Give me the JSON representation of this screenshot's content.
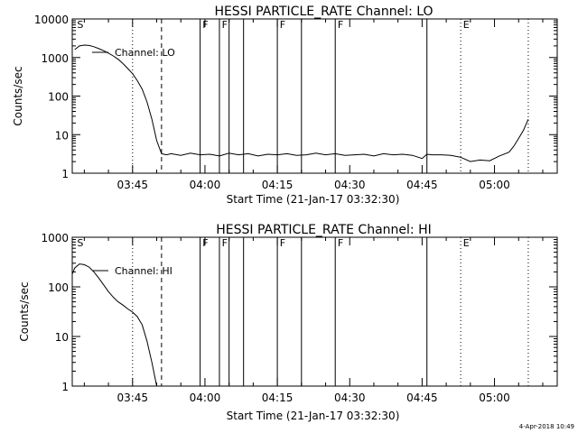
{
  "footer": {
    "timestamp": "4-Apr-2018 10:49"
  },
  "chart_data": [
    {
      "type": "line",
      "title": "HESSI PARTICLE_RATE Channel: LO",
      "xlabel": "Start Time (21-Jan-17 03:32:30)",
      "ylabel": "Counts/sec",
      "yscale": "log",
      "xlim": [
        "03:32:30",
        "05:13:00"
      ],
      "ylim": [
        1,
        10000
      ],
      "x_ticks": [
        "03:45",
        "04:00",
        "04:15",
        "04:30",
        "04:45",
        "05:00"
      ],
      "y_ticks": [
        "1",
        "10",
        "100",
        "1000",
        "10000"
      ],
      "legend": "Channel: LO",
      "flag_labels": [
        "S",
        "F",
        "F",
        "F",
        "F",
        "E"
      ],
      "markers": [
        {
          "time": "03:45",
          "style": "dotted"
        },
        {
          "time": "03:51",
          "style": "dashed"
        },
        {
          "time": "03:59",
          "style": "solid"
        },
        {
          "time": "04:03",
          "style": "solid"
        },
        {
          "time": "04:05",
          "style": "solid"
        },
        {
          "time": "04:08",
          "style": "solid"
        },
        {
          "time": "04:15",
          "style": "solid"
        },
        {
          "time": "04:20",
          "style": "solid"
        },
        {
          "time": "04:27",
          "style": "solid"
        },
        {
          "time": "04:46",
          "style": "solid"
        },
        {
          "time": "04:53",
          "style": "dotted"
        },
        {
          "time": "05:07",
          "style": "dotted"
        }
      ],
      "series": [
        {
          "x": [
            "03:33",
            "03:34",
            "03:35",
            "03:36",
            "03:37",
            "03:38",
            "03:39",
            "03:40",
            "03:41",
            "03:42",
            "03:43",
            "03:44",
            "03:45",
            "03:46",
            "03:47",
            "03:48",
            "03:49",
            "03:50",
            "03:51",
            "03:52",
            "03:53",
            "03:55",
            "03:57",
            "03:59",
            "04:01",
            "04:03",
            "04:05",
            "04:07",
            "04:09",
            "04:11",
            "04:13",
            "04:15",
            "04:17",
            "04:19",
            "04:21",
            "04:23",
            "04:25",
            "04:27",
            "04:29",
            "04:31",
            "04:33",
            "04:35",
            "04:37",
            "04:39",
            "04:41",
            "04:43",
            "04:45",
            "04:46",
            "04:47",
            "04:49",
            "04:51",
            "04:53",
            "04:55",
            "04:57",
            "04:59",
            "05:01",
            "05:03",
            "05:04",
            "05:05",
            "05:06",
            "05:07"
          ],
          "y": [
            1600,
            2000,
            2100,
            2050,
            1900,
            1700,
            1500,
            1300,
            1100,
            900,
            700,
            520,
            380,
            250,
            150,
            70,
            25,
            7,
            3.2,
            3.0,
            3.2,
            2.9,
            3.3,
            3.0,
            3.1,
            2.8,
            3.3,
            3.0,
            3.2,
            2.8,
            3.1,
            3.0,
            3.2,
            2.9,
            3.0,
            3.3,
            3.0,
            3.2,
            2.9,
            3.0,
            3.1,
            2.8,
            3.2,
            3.0,
            3.1,
            2.9,
            2.4,
            3.1,
            3.0,
            3.0,
            2.9,
            2.6,
            2.0,
            2.2,
            2.1,
            2.8,
            3.5,
            5,
            8,
            13,
            25
          ]
        }
      ]
    },
    {
      "type": "line",
      "title": "HESSI PARTICLE_RATE Channel: HI",
      "xlabel": "Start Time (21-Jan-17 03:32:30)",
      "ylabel": "Counts/sec",
      "yscale": "log",
      "xlim": [
        "03:32:30",
        "05:13:00"
      ],
      "ylim": [
        1,
        1000
      ],
      "x_ticks": [
        "03:45",
        "04:00",
        "04:15",
        "04:30",
        "04:45",
        "05:00"
      ],
      "y_ticks": [
        "1",
        "10",
        "100",
        "1000"
      ],
      "legend": "Channel: HI",
      "flag_labels": [
        "S",
        "F",
        "F",
        "F",
        "F",
        "E"
      ],
      "markers": [
        {
          "time": "03:45",
          "style": "dotted"
        },
        {
          "time": "03:51",
          "style": "dashed"
        },
        {
          "time": "03:59",
          "style": "solid"
        },
        {
          "time": "04:03",
          "style": "solid"
        },
        {
          "time": "04:05",
          "style": "solid"
        },
        {
          "time": "04:08",
          "style": "solid"
        },
        {
          "time": "04:15",
          "style": "solid"
        },
        {
          "time": "04:20",
          "style": "solid"
        },
        {
          "time": "04:27",
          "style": "solid"
        },
        {
          "time": "04:46",
          "style": "solid"
        },
        {
          "time": "04:53",
          "style": "dotted"
        },
        {
          "time": "05:07",
          "style": "dotted"
        }
      ],
      "series": [
        {
          "x": [
            "03:32:30",
            "03:33",
            "03:34",
            "03:35",
            "03:36",
            "03:37",
            "03:38",
            "03:39",
            "03:40",
            "03:41",
            "03:42",
            "03:43",
            "03:44",
            "03:45",
            "03:46",
            "03:47",
            "03:48",
            "03:49",
            "03:50"
          ],
          "y": [
            180,
            240,
            290,
            280,
            250,
            200,
            150,
            110,
            80,
            62,
            50,
            43,
            36,
            31,
            25,
            17,
            8,
            3,
            1
          ]
        }
      ]
    }
  ]
}
